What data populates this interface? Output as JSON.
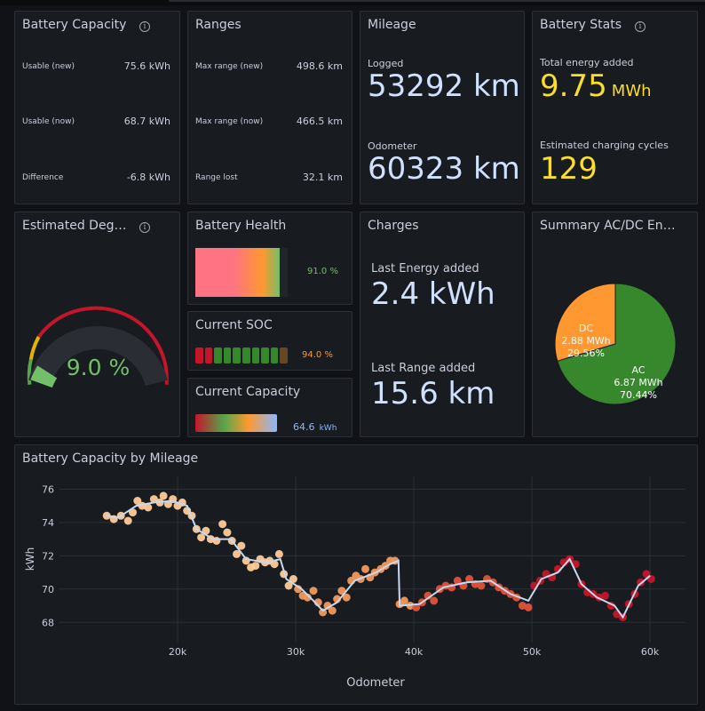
{
  "battery_capacity": {
    "title": "Battery Capacity",
    "rows": [
      {
        "label": "Usable (new)",
        "value": "75.6 kWh"
      },
      {
        "label": "Usable (now)",
        "value": "68.7 kWh"
      },
      {
        "label": "Difference",
        "value": "-6.8 kWh"
      }
    ]
  },
  "ranges": {
    "title": "Ranges",
    "rows": [
      {
        "label": "Max range (new)",
        "value": "498.6 km"
      },
      {
        "label": "Max range (now)",
        "value": "466.5 km"
      },
      {
        "label": "Range lost",
        "value": "32.1 km"
      }
    ]
  },
  "mileage": {
    "title": "Mileage",
    "logged_label": "Logged",
    "logged_value": "53292 km",
    "odometer_label": "Odometer",
    "odometer_value": "60323 km"
  },
  "battery_stats": {
    "title": "Battery Stats",
    "energy_label": "Total energy added",
    "energy_value": "9.75",
    "energy_unit": "MWh",
    "cycles_label": "Estimated charging cycles",
    "cycles_value": "129"
  },
  "degradation": {
    "title": "Estimated Deg…",
    "value": "9.0 %",
    "percent": 9.0
  },
  "battery_health": {
    "title": "Battery Health",
    "value": "91.0 %",
    "percent": 91.0
  },
  "current_soc": {
    "title": "Current SOC",
    "value": "94.0 %",
    "percent": 94.0
  },
  "current_capacity": {
    "title": "Current Capacity",
    "value": "64.6",
    "unit": "kWh"
  },
  "charges": {
    "title": "Charges",
    "energy_label": "Last Energy added",
    "energy_value": "2.4 kWh",
    "range_label": "Last Range added",
    "range_value": "15.6 km"
  },
  "summary": {
    "title": "Summary AC/DC En…",
    "slices": [
      {
        "label": "AC",
        "amount": "6.87 MWh",
        "pct_text": "70.44%",
        "value": 70.44,
        "color": "#37872d"
      },
      {
        "label": "DC",
        "amount": "2.88 MWh",
        "pct_text": "29.56%",
        "value": 29.56,
        "color": "#ff9830"
      }
    ]
  },
  "capacity_chart": {
    "title": "Battery Capacity by Mileage",
    "chart_data": {
      "type": "scatter",
      "xlabel": "Odometer",
      "ylabel": "kWh",
      "xlim": [
        10000,
        63000
      ],
      "ylim": [
        67,
        76.5
      ],
      "x_ticks": [
        {
          "v": 20000,
          "t": "20k"
        },
        {
          "v": 30000,
          "t": "30k"
        },
        {
          "v": 40000,
          "t": "40k"
        },
        {
          "v": 50000,
          "t": "50k"
        },
        {
          "v": 60000,
          "t": "60k"
        }
      ],
      "y_ticks": [
        68,
        70,
        72,
        74,
        76
      ],
      "grid": true,
      "line_color": "#c8d8f0",
      "points": [
        [
          14000,
          74.4
        ],
        [
          14600,
          74.2
        ],
        [
          15200,
          74.4
        ],
        [
          15800,
          74.1
        ],
        [
          16200,
          74.6
        ],
        [
          16600,
          75.3
        ],
        [
          17000,
          75.0
        ],
        [
          17500,
          74.9
        ],
        [
          18000,
          75.4
        ],
        [
          18500,
          75.2
        ],
        [
          18800,
          75.6
        ],
        [
          19200,
          75.1
        ],
        [
          19600,
          75.4
        ],
        [
          20000,
          75.0
        ],
        [
          20400,
          75.2
        ],
        [
          20800,
          74.7
        ],
        [
          21200,
          74.4
        ],
        [
          21600,
          73.6
        ],
        [
          22000,
          73.1
        ],
        [
          22400,
          73.5
        ],
        [
          22800,
          73.0
        ],
        [
          23300,
          72.9
        ],
        [
          23800,
          73.9
        ],
        [
          24200,
          73.4
        ],
        [
          24600,
          72.9
        ],
        [
          25000,
          72.1
        ],
        [
          25400,
          72.6
        ],
        [
          25800,
          71.7
        ],
        [
          26200,
          71.3
        ],
        [
          26600,
          71.4
        ],
        [
          27000,
          71.8
        ],
        [
          27400,
          71.6
        ],
        [
          27800,
          71.7
        ],
        [
          28200,
          71.5
        ],
        [
          28600,
          72.1
        ],
        [
          29000,
          70.9
        ],
        [
          29400,
          70.2
        ],
        [
          29800,
          70.6
        ],
        [
          30200,
          70.0
        ],
        [
          30600,
          69.6
        ],
        [
          31000,
          69.5
        ],
        [
          31500,
          69.9
        ],
        [
          31900,
          69.2
        ],
        [
          32300,
          68.6
        ],
        [
          32700,
          69.0
        ],
        [
          33100,
          68.7
        ],
        [
          33500,
          69.4
        ],
        [
          33900,
          69.9
        ],
        [
          34300,
          69.5
        ],
        [
          34700,
          70.5
        ],
        [
          35100,
          70.8
        ],
        [
          35500,
          70.6
        ],
        [
          35900,
          71.2
        ],
        [
          36300,
          70.7
        ],
        [
          36700,
          71.0
        ],
        [
          37200,
          71.2
        ],
        [
          37600,
          71.4
        ],
        [
          38000,
          71.7
        ],
        [
          38400,
          71.7
        ],
        [
          38800,
          69.1
        ],
        [
          39200,
          69.3
        ],
        [
          39700,
          69.0
        ],
        [
          40200,
          68.9
        ],
        [
          40700,
          69.2
        ],
        [
          41200,
          69.6
        ],
        [
          41700,
          69.3
        ],
        [
          42200,
          70.0
        ],
        [
          42700,
          70.2
        ],
        [
          43200,
          70.1
        ],
        [
          43700,
          70.5
        ],
        [
          44200,
          70.2
        ],
        [
          44700,
          70.6
        ],
        [
          45200,
          70.3
        ],
        [
          45700,
          70.2
        ],
        [
          46200,
          70.6
        ],
        [
          46700,
          70.4
        ],
        [
          47200,
          70.1
        ],
        [
          47700,
          69.9
        ],
        [
          48200,
          69.7
        ],
        [
          48700,
          69.5
        ],
        [
          49200,
          69.0
        ],
        [
          49700,
          68.9
        ],
        [
          50200,
          70.2
        ],
        [
          50700,
          70.5
        ],
        [
          51200,
          70.9
        ],
        [
          51700,
          70.7
        ],
        [
          52200,
          71.2
        ],
        [
          52700,
          71.6
        ],
        [
          53200,
          71.8
        ],
        [
          53700,
          71.5
        ],
        [
          54200,
          70.3
        ],
        [
          54700,
          69.8
        ],
        [
          55200,
          69.7
        ],
        [
          55700,
          69.5
        ],
        [
          56200,
          69.6
        ],
        [
          56700,
          69.0
        ],
        [
          57200,
          68.5
        ],
        [
          57700,
          68.3
        ],
        [
          58200,
          69.1
        ],
        [
          58700,
          69.7
        ],
        [
          59200,
          70.4
        ],
        [
          59700,
          70.9
        ],
        [
          60100,
          70.6
        ]
      ],
      "line": [
        [
          14000,
          74.4
        ],
        [
          15000,
          74.3
        ],
        [
          16500,
          75.0
        ],
        [
          18000,
          75.2
        ],
        [
          19500,
          75.3
        ],
        [
          20800,
          75.0
        ],
        [
          21600,
          73.6
        ],
        [
          23000,
          73.0
        ],
        [
          24500,
          73.0
        ],
        [
          25800,
          71.8
        ],
        [
          27500,
          71.6
        ],
        [
          28700,
          71.8
        ],
        [
          29200,
          70.6
        ],
        [
          30500,
          70.0
        ],
        [
          31500,
          69.3
        ],
        [
          32300,
          68.7
        ],
        [
          33500,
          69.2
        ],
        [
          35000,
          70.5
        ],
        [
          36800,
          71.0
        ],
        [
          38000,
          71.5
        ],
        [
          38700,
          71.7
        ],
        [
          38800,
          69.0
        ],
        [
          40500,
          69.1
        ],
        [
          42500,
          70.1
        ],
        [
          44500,
          70.4
        ],
        [
          46500,
          70.5
        ],
        [
          48200,
          69.7
        ],
        [
          49700,
          69.3
        ],
        [
          50800,
          70.6
        ],
        [
          52200,
          71.0
        ],
        [
          53200,
          71.8
        ],
        [
          54200,
          70.3
        ],
        [
          55500,
          69.5
        ],
        [
          57000,
          69.0
        ],
        [
          57700,
          68.3
        ],
        [
          59000,
          70.2
        ],
        [
          60000,
          70.8
        ]
      ]
    }
  }
}
